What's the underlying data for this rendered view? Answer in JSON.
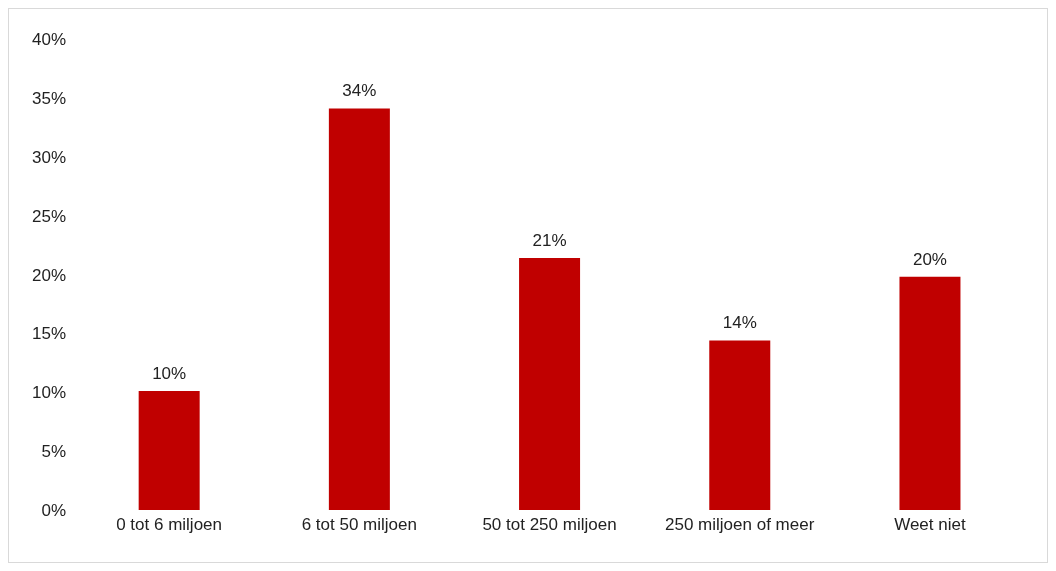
{
  "chart_data": {
    "type": "bar",
    "categories": [
      "0 tot 6 miljoen",
      "6 tot 50 miljoen",
      "50 tot 250 miljoen",
      "250 miljoen of meer",
      "Weet niet"
    ],
    "values": [
      10.1,
      34.1,
      21.4,
      14.4,
      19.8
    ],
    "value_labels": [
      "10%",
      "34%",
      "21%",
      "14%",
      "20%"
    ],
    "color": "#c00000",
    "ylim": [
      0,
      40
    ],
    "yticks": [
      {
        "value": 0,
        "label": "0%"
      },
      {
        "value": 5,
        "label": "5%"
      },
      {
        "value": 10,
        "label": "10%"
      },
      {
        "value": 15,
        "label": "15%"
      },
      {
        "value": 20,
        "label": "20%"
      },
      {
        "value": 25,
        "label": "25%"
      },
      {
        "value": 30,
        "label": "30%"
      },
      {
        "value": 35,
        "label": "35%"
      },
      {
        "value": 40,
        "label": "40%"
      }
    ],
    "grid": false
  }
}
